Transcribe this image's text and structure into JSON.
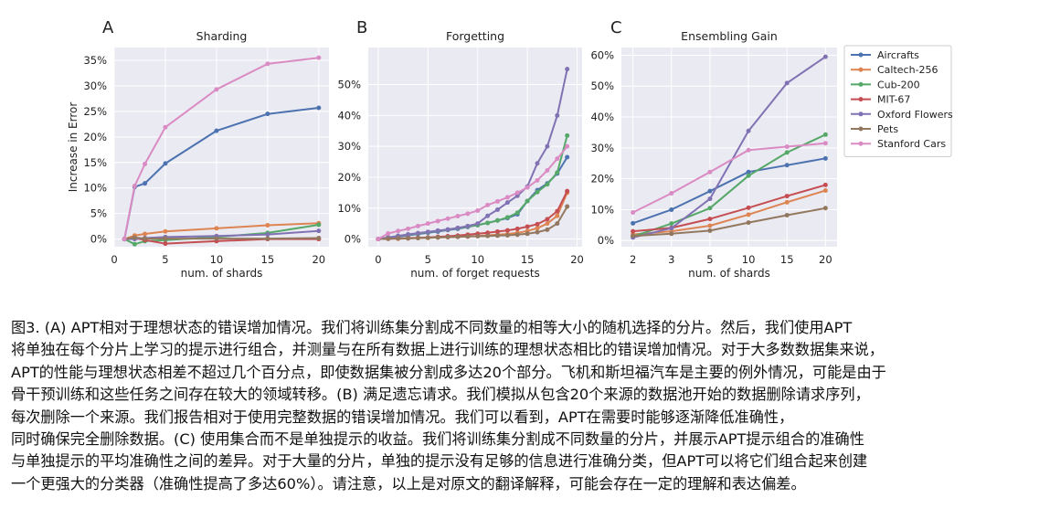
{
  "colors": {
    "panel_bg": "#eaeaf2",
    "grid": "#ffffff",
    "series": {
      "Aircrafts": "#4c72b0",
      "Caltech-256": "#dd8452",
      "Cub-200": "#55a868",
      "MIT-67": "#c44e52",
      "Oxford Flowers": "#8172b3",
      "Pets": "#937860",
      "Stanford Cars": "#da8bc3"
    }
  },
  "legend": {
    "placement": "right of panel C",
    "entries": [
      "Aircrafts",
      "Caltech-256",
      "Cub-200",
      "MIT-67",
      "Oxford Flowers",
      "Pets",
      "Stanford Cars"
    ]
  },
  "chart_data": [
    {
      "panel_letter": "A",
      "type": "line",
      "title": "Sharding",
      "xlabel": "num. of shards",
      "ylabel": "Increase in Error",
      "xlim": [
        0,
        21
      ],
      "ylim": [
        -0.015,
        0.375
      ],
      "grid": true,
      "xticks": [
        0,
        5,
        10,
        15,
        20
      ],
      "yticks": [
        0,
        0.05,
        0.1,
        0.15,
        0.2,
        0.25,
        0.3,
        0.35
      ],
      "ytick_labels": [
        "0%",
        "5%",
        "10%",
        "15%",
        "20%",
        "25%",
        "30%",
        "35%"
      ],
      "x": [
        1,
        2,
        3,
        5,
        10,
        15,
        20
      ],
      "series": [
        {
          "name": "Aircrafts",
          "values": [
            0,
            0.102,
            0.109,
            0.148,
            0.212,
            0.245,
            0.257
          ]
        },
        {
          "name": "Caltech-256",
          "values": [
            0,
            0.007,
            0.01,
            0.015,
            0.021,
            0.027,
            0.031
          ]
        },
        {
          "name": "Cub-200",
          "values": [
            0,
            -0.01,
            -0.004,
            -0.002,
            0.004,
            0.012,
            0.028
          ]
        },
        {
          "name": "MIT-67",
          "values": [
            0,
            0.002,
            -0.002,
            -0.009,
            -0.004,
            0,
            0
          ]
        },
        {
          "name": "Oxford Flowers",
          "values": [
            0,
            0,
            0.002,
            0.004,
            0.006,
            0.009,
            0.016
          ]
        },
        {
          "name": "Pets",
          "values": [
            0,
            0.003,
            0.001,
            0.001,
            0.001,
            0.001,
            0.002
          ]
        },
        {
          "name": "Stanford Cars",
          "values": [
            0,
            0.104,
            0.147,
            0.219,
            0.293,
            0.343,
            0.355
          ]
        }
      ]
    },
    {
      "panel_letter": "B",
      "type": "line",
      "title": "Forgetting",
      "xlabel": "num. of forget requests",
      "ylabel": "",
      "xlim": [
        -1,
        20.5
      ],
      "ylim": [
        -0.025,
        0.62
      ],
      "grid": true,
      "xticks": [
        0,
        5,
        10,
        15,
        20
      ],
      "yticks": [
        0,
        0.1,
        0.2,
        0.3,
        0.4,
        0.5
      ],
      "ytick_labels": [
        "0%",
        "10%",
        "20%",
        "30%",
        "40%",
        "50%"
      ],
      "x": [
        0,
        1,
        2,
        3,
        4,
        5,
        6,
        7,
        8,
        9,
        10,
        11,
        12,
        13,
        14,
        15,
        16,
        17,
        18,
        19
      ],
      "series": [
        {
          "name": "Aircrafts",
          "values": [
            0,
            0.004,
            0.008,
            0.012,
            0.016,
            0.02,
            0.024,
            0.029,
            0.033,
            0.039,
            0.045,
            0.052,
            0.06,
            0.068,
            0.08,
            0.123,
            0.158,
            0.18,
            0.212,
            0.265
          ]
        },
        {
          "name": "Caltech-256",
          "values": [
            0,
            0.001,
            0.001,
            0.002,
            0.003,
            0.004,
            0.005,
            0.006,
            0.007,
            0.008,
            0.01,
            0.012,
            0.014,
            0.016,
            0.02,
            0.026,
            0.035,
            0.05,
            0.075,
            0.15
          ]
        },
        {
          "name": "Cub-200",
          "values": [
            0,
            0.005,
            0.01,
            0.014,
            0.018,
            0.022,
            0.026,
            0.03,
            0.035,
            0.04,
            0.045,
            0.052,
            0.06,
            0.07,
            0.085,
            0.123,
            0.152,
            0.177,
            0.215,
            0.335
          ]
        },
        {
          "name": "MIT-67",
          "values": [
            0,
            0.001,
            0.002,
            0.003,
            0.004,
            0.005,
            0.007,
            0.009,
            0.011,
            0.014,
            0.017,
            0.02,
            0.024,
            0.028,
            0.033,
            0.04,
            0.048,
            0.064,
            0.09,
            0.155
          ]
        },
        {
          "name": "Oxford Flowers",
          "values": [
            0,
            0.005,
            0.01,
            0.015,
            0.019,
            0.023,
            0.027,
            0.031,
            0.036,
            0.042,
            0.05,
            0.075,
            0.095,
            0.118,
            0.14,
            0.17,
            0.245,
            0.3,
            0.4,
            0.55
          ]
        },
        {
          "name": "Pets",
          "values": [
            0,
            0.001,
            0.002,
            0.002,
            0.003,
            0.004,
            0.005,
            0.006,
            0.007,
            0.008,
            0.009,
            0.01,
            0.011,
            0.012,
            0.014,
            0.017,
            0.022,
            0.03,
            0.05,
            0.105
          ]
        },
        {
          "name": "Stanford Cars",
          "values": [
            0,
            0.018,
            0.026,
            0.033,
            0.042,
            0.05,
            0.058,
            0.066,
            0.074,
            0.082,
            0.092,
            0.11,
            0.122,
            0.135,
            0.15,
            0.167,
            0.19,
            0.222,
            0.26,
            0.3
          ]
        }
      ]
    },
    {
      "panel_letter": "C",
      "type": "line",
      "title": "Ensembling Gain",
      "xlabel": "num. of shards",
      "ylabel": "",
      "x_scale": "categorical",
      "ylim": [
        -0.02,
        0.625
      ],
      "grid": true,
      "categories": [
        "2",
        "3",
        "5",
        "10",
        "15",
        "20"
      ],
      "yticks": [
        0,
        0.1,
        0.2,
        0.3,
        0.4,
        0.5,
        0.6
      ],
      "ytick_labels": [
        "0%",
        "10%",
        "20%",
        "30%",
        "40%",
        "50%",
        "60%"
      ],
      "series": [
        {
          "name": "Aircrafts",
          "values": [
            0.056,
            0.1,
            0.16,
            0.222,
            0.244,
            0.266
          ]
        },
        {
          "name": "Caltech-256",
          "values": [
            0.02,
            0.03,
            0.048,
            0.084,
            0.124,
            0.162
          ]
        },
        {
          "name": "Cub-200",
          "values": [
            0.013,
            0.055,
            0.105,
            0.21,
            0.285,
            0.343
          ]
        },
        {
          "name": "MIT-67",
          "values": [
            0.03,
            0.041,
            0.07,
            0.106,
            0.144,
            0.18
          ]
        },
        {
          "name": "Oxford Flowers",
          "values": [
            0.01,
            0.04,
            0.135,
            0.355,
            0.51,
            0.595
          ]
        },
        {
          "name": "Pets",
          "values": [
            0.015,
            0.022,
            0.032,
            0.058,
            0.082,
            0.105
          ]
        },
        {
          "name": "Stanford Cars",
          "values": [
            0.091,
            0.153,
            0.222,
            0.293,
            0.304,
            0.315
          ]
        }
      ]
    }
  ],
  "caption": {
    "lines": [
      "图3. (A) APT相对于理想状态的错误增加情况。我们将训练集分割成不同数量的相等大小的随机选择的分片。然后，我们使用APT",
      "将单独在每个分片上学习的提示进行组合，并测量与在所有数据上进行训练的理想状态相比的错误增加情况。对于大多数数据集来说，",
      "APT的性能与理想状态相差不超过几个百分点，即使数据集被分割成多达20个部分。飞机和斯坦福汽车是主要的例外情况，可能是由于",
      "骨干预训练和这些任务之间存在较大的领域转移。(B) 满足遗忘请求。我们模拟从包含20个来源的数据池开始的数据删除请求序列，",
      "每次删除一个来源。我们报告相对于使用完整数据的错误增加情况。我们可以看到，APT在需要时能够逐渐降低准确性，",
      "同时确保完全删除数据。(C) 使用集合而不是单独提示的收益。我们将训练集分割成不同数量的分片，并展示APT提示组合的准确性",
      "与单独提示的平均准确性之间的差异。对于大量的分片，单独的提示没有足够的信息进行准确分类，但APT可以将它们组合起来创建",
      "一个更强大的分类器（准确性提高了多达60%）。请注意，以上是对原文的翻译解释，可能会存在一定的理解和表达偏差。"
    ]
  }
}
